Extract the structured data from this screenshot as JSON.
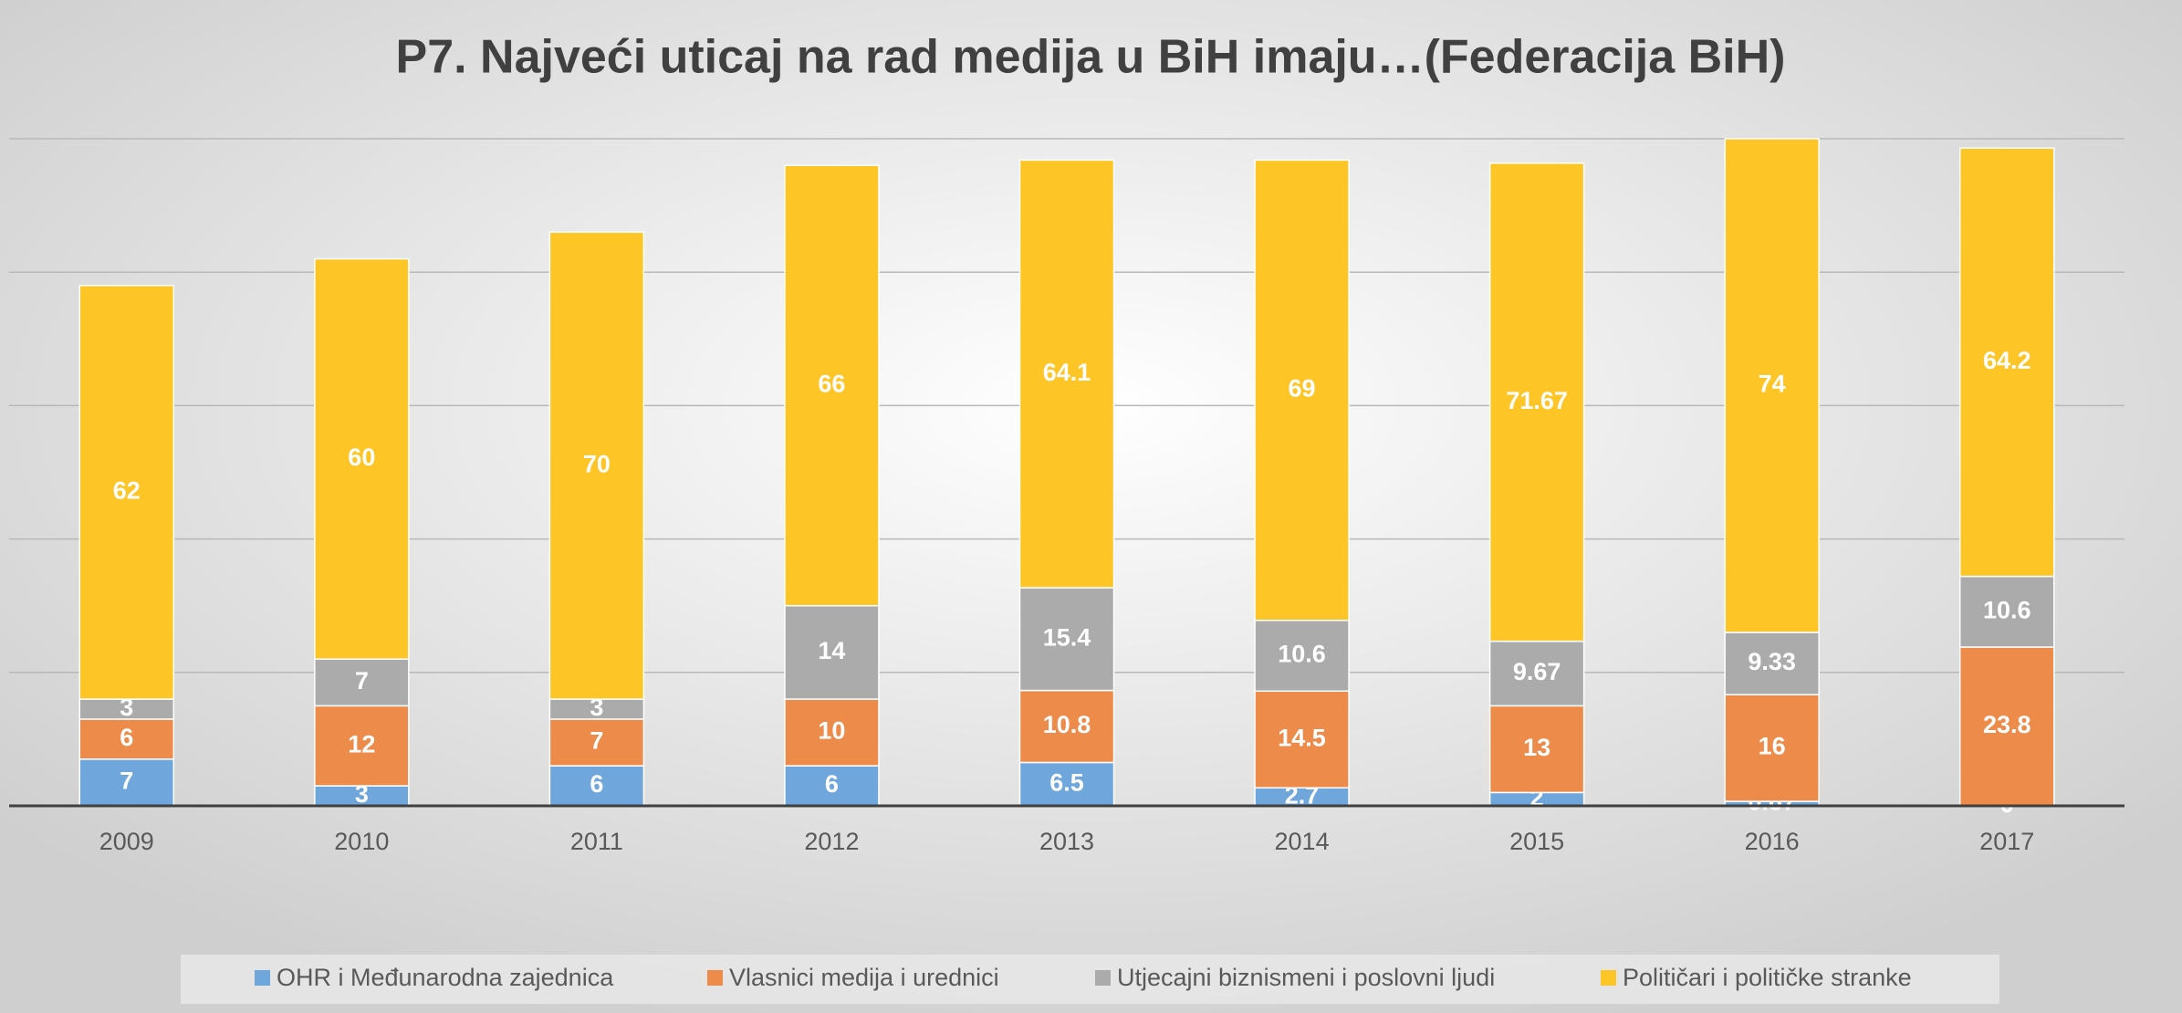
{
  "chart_data": {
    "type": "stacked_bar",
    "title": "P7. Najveći uticaj na rad medija u BiH imaju…(Federacija BiH)",
    "categories": [
      "2009",
      "2010",
      "2011",
      "2012",
      "2013",
      "2014",
      "2015",
      "2016",
      "2017"
    ],
    "series": [
      {
        "name": "OHR i Međunarodna zajednica",
        "color": "#6fa6dc",
        "values": [
          7,
          3,
          6,
          6,
          6.5,
          2.7,
          2,
          0.67,
          0
        ]
      },
      {
        "name": "Vlasnici medija i urednici",
        "color": "#ed8b4a",
        "values": [
          6,
          12,
          7,
          10,
          10.8,
          14.5,
          13,
          16,
          23.8
        ]
      },
      {
        "name": "Utjecajni biznismeni i poslovni ljudi",
        "color": "#ababab",
        "values": [
          3,
          7,
          3,
          14,
          15.4,
          10.6,
          9.67,
          9.33,
          10.6
        ]
      },
      {
        "name": "Političari i političke stranke",
        "color": "#fec527",
        "values": [
          62,
          60,
          70,
          66,
          64.1,
          69,
          71.67,
          74,
          64.2
        ]
      }
    ],
    "ylim": [
      0,
      100
    ],
    "yticks": [
      0,
      20,
      40,
      60,
      80,
      100
    ],
    "grid": true,
    "legend": "bottom"
  }
}
